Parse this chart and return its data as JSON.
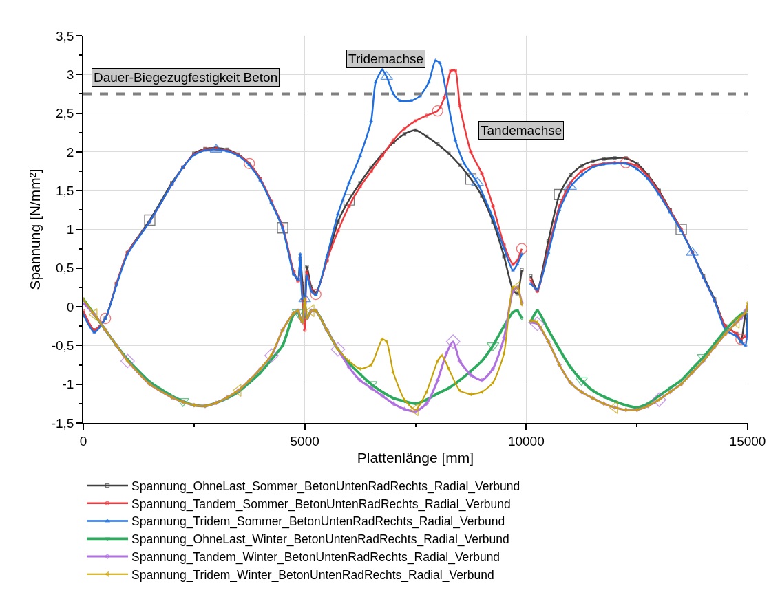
{
  "chart_data": {
    "type": "line",
    "xlabel": "Plattenlänge [mm]",
    "ylabel": "Spannung [N/mm²]",
    "xlim": [
      0,
      15000
    ],
    "xticks": [
      0,
      {
        "value": 2500,
        "label": null
      },
      5000,
      {
        "value": 7500,
        "label": null
      },
      10000,
      {
        "value": 12500,
        "label": null
      },
      15000
    ],
    "ylim": [
      -1.5,
      3.5
    ],
    "yticks": [
      {
        "value": -1.5,
        "label": "-1,5"
      },
      {
        "value": -1.25,
        "label": null
      },
      -1,
      {
        "value": -0.75,
        "label": null
      },
      {
        "value": -0.5,
        "label": "-0,5"
      },
      {
        "value": -0.25,
        "label": null
      },
      0,
      {
        "value": 0.25,
        "label": null
      },
      {
        "value": 0.5,
        "label": "0,5"
      },
      {
        "value": 0.75,
        "label": null
      },
      1,
      {
        "value": 1.25,
        "label": null
      },
      {
        "value": 1.5,
        "label": "1,5"
      },
      {
        "value": 1.75,
        "label": null
      },
      2,
      {
        "value": 2.25,
        "label": null
      },
      {
        "value": 2.5,
        "label": "2,5"
      },
      {
        "value": 2.75,
        "label": null
      },
      3,
      {
        "value": 3.25,
        "label": null
      },
      {
        "value": 3.5,
        "label": "3,5"
      }
    ],
    "grid": true,
    "legend": "bottom",
    "line_style": "solid",
    "ref_lines": [
      {
        "axis": "y",
        "value": 2.75,
        "label": "Dauer-Biegezugfestigkeit Beton",
        "color": "#808080",
        "line_style": "dashed"
      }
    ],
    "annotations": [
      "Tridemachse",
      "Tandemachse"
    ],
    "series": [
      {
        "name": "Spannung_OhneLast_Sommer_BetonUntenRadRechts_Radial_Verbund",
        "color": "#404040",
        "marker": "square",
        "x": [
          0,
          250,
          500,
          750,
          1000,
          1500,
          2000,
          2250,
          2500,
          2750,
          3000,
          3250,
          3500,
          3750,
          4000,
          4250,
          4500,
          4750,
          4850,
          4900,
          4950,
          5000,
          5050,
          5150,
          5250,
          5500,
          5750,
          6000,
          6250,
          6500,
          6750,
          7000,
          7250,
          7500,
          7750,
          8000,
          8250,
          8500,
          8750,
          9000,
          9250,
          9500,
          9700,
          9800,
          9900,
          10000,
          10100,
          10250,
          10500,
          10750,
          11000,
          11250,
          11500,
          11750,
          12000,
          12250,
          12500,
          12750,
          13000,
          13250,
          13500,
          13750,
          14000,
          14250,
          14500,
          14750,
          14850,
          14950,
          15000
        ],
        "values": [
          -0.1,
          -0.3,
          -0.15,
          0.3,
          0.7,
          1.12,
          1.6,
          1.8,
          1.98,
          2.04,
          2.05,
          2.03,
          1.97,
          1.85,
          1.65,
          1.35,
          1.02,
          0.45,
          0.35,
          0.62,
          0.3,
          0.05,
          0.52,
          0.25,
          0.18,
          0.6,
          1.1,
          1.38,
          1.6,
          1.8,
          1.97,
          2.12,
          2.23,
          2.28,
          2.2,
          2.1,
          1.98,
          1.83,
          1.65,
          1.43,
          1.1,
          0.65,
          0.22,
          0.17,
          0.48,
          null,
          0.4,
          0.22,
          0.85,
          1.45,
          1.7,
          1.82,
          1.88,
          1.91,
          1.92,
          1.92,
          1.85,
          1.7,
          1.5,
          1.25,
          1.0,
          0.7,
          0.4,
          0.1,
          -0.25,
          -0.35,
          -0.45,
          -0.1,
          -0.3
        ]
      },
      {
        "name": "Spannung_Tandem_Sommer_BetonUntenRadRechts_Radial_Verbund",
        "color": "#f0383c",
        "marker": "circle",
        "x": [
          0,
          250,
          500,
          750,
          1000,
          1500,
          2000,
          2250,
          2500,
          2750,
          3000,
          3250,
          3500,
          3750,
          4000,
          4250,
          4500,
          4750,
          4850,
          4900,
          4950,
          5000,
          5050,
          5150,
          5250,
          5500,
          5750,
          6000,
          6250,
          6500,
          6750,
          7000,
          7250,
          7500,
          7750,
          8000,
          8150,
          8300,
          8400,
          8500,
          8750,
          9000,
          9250,
          9500,
          9700,
          9800,
          9900,
          10000,
          10100,
          10250,
          10500,
          10750,
          11000,
          11250,
          11500,
          11750,
          12000,
          12250,
          12500,
          12750,
          13000,
          13250,
          13500,
          13750,
          14000,
          14250,
          14500,
          14750,
          14850,
          14950,
          15000
        ],
        "values": [
          -0.05,
          -0.3,
          -0.15,
          0.3,
          0.7,
          1.1,
          1.58,
          1.8,
          1.97,
          2.03,
          2.04,
          2.02,
          1.96,
          1.85,
          1.65,
          1.36,
          1.04,
          0.45,
          0.33,
          0.5,
          0.1,
          -0.3,
          0.45,
          0.22,
          0.16,
          0.6,
          0.98,
          1.3,
          1.55,
          1.75,
          1.95,
          2.15,
          2.3,
          2.4,
          2.47,
          2.53,
          2.7,
          3.05,
          3.05,
          2.6,
          2.0,
          1.72,
          1.3,
          0.8,
          0.55,
          0.6,
          0.75,
          null,
          0.35,
          0.2,
          0.75,
          1.3,
          1.6,
          1.75,
          1.82,
          1.85,
          1.86,
          1.86,
          1.82,
          1.68,
          1.48,
          1.24,
          1.0,
          0.7,
          0.38,
          0.08,
          -0.25,
          -0.35,
          -0.42,
          -0.38,
          -0.4
        ]
      },
      {
        "name": "Spannung_Tridem_Sommer_BetonUntenRadRechts_Radial_Verbund",
        "color": "#1f6fe0",
        "marker": "triangle",
        "x": [
          0,
          250,
          500,
          750,
          1000,
          1500,
          2000,
          2250,
          2500,
          2750,
          3000,
          3250,
          3500,
          3750,
          4000,
          4250,
          4500,
          4750,
          4850,
          4900,
          4950,
          5000,
          5050,
          5150,
          5250,
          5500,
          5750,
          6000,
          6250,
          6500,
          6600,
          6750,
          6850,
          7000,
          7150,
          7400,
          7600,
          7800,
          7950,
          8050,
          8200,
          8400,
          8600,
          8900,
          9250,
          9500,
          9700,
          9800,
          9900,
          10000,
          10100,
          10250,
          10500,
          10750,
          11000,
          11250,
          11500,
          11750,
          12000,
          12250,
          12500,
          12750,
          13000,
          13250,
          13500,
          13750,
          14000,
          14250,
          14500,
          14750,
          14850,
          14950,
          15000
        ],
        "values": [
          -0.1,
          -0.33,
          -0.15,
          0.28,
          0.68,
          1.1,
          1.58,
          1.8,
          1.96,
          2.02,
          2.03,
          2.01,
          1.95,
          1.83,
          1.63,
          1.34,
          1.02,
          0.42,
          0.35,
          0.68,
          0.1,
          0.1,
          0.4,
          0.2,
          0.15,
          0.65,
          1.2,
          1.6,
          1.95,
          2.4,
          2.9,
          3.06,
          2.97,
          2.75,
          2.66,
          2.66,
          2.72,
          2.9,
          3.18,
          3.15,
          2.75,
          2.15,
          1.85,
          1.6,
          1.15,
          0.75,
          0.47,
          0.55,
          0.68,
          null,
          0.3,
          0.22,
          0.7,
          1.25,
          1.55,
          1.7,
          1.8,
          1.84,
          1.85,
          1.85,
          1.78,
          1.65,
          1.45,
          1.22,
          0.98,
          0.7,
          0.38,
          0.08,
          -0.3,
          -0.38,
          -0.45,
          -0.5,
          -0.1
        ]
      },
      {
        "name": "Spannung_OhneLast_Winter_BetonUntenRadRechts_Radial_Verbund",
        "color": "#2eaa5e",
        "marker": "triangle-down",
        "x": [
          0,
          250,
          500,
          750,
          1000,
          1500,
          2000,
          2250,
          2500,
          2750,
          3000,
          3250,
          3500,
          3750,
          4000,
          4250,
          4500,
          4750,
          4850,
          4900,
          4950,
          5000,
          5050,
          5150,
          5250,
          5500,
          5750,
          6000,
          6250,
          6500,
          6750,
          7000,
          7250,
          7500,
          7750,
          8000,
          8250,
          8500,
          8750,
          9000,
          9250,
          9500,
          9700,
          9800,
          9900,
          10000,
          10100,
          10250,
          10500,
          10750,
          11000,
          11250,
          11500,
          11750,
          12000,
          12250,
          12500,
          12750,
          13000,
          13250,
          13500,
          13750,
          14000,
          14250,
          14500,
          14750,
          14850,
          14950,
          15000
        ],
        "values": [
          0.1,
          -0.1,
          -0.3,
          -0.5,
          -0.68,
          -0.97,
          -1.15,
          -1.22,
          -1.27,
          -1.28,
          -1.24,
          -1.18,
          -1.1,
          -0.98,
          -0.85,
          -0.68,
          -0.5,
          -0.1,
          -0.07,
          -0.15,
          -0.2,
          0.05,
          -0.15,
          -0.05,
          -0.05,
          -0.3,
          -0.55,
          -0.73,
          -0.87,
          -1.0,
          -1.1,
          -1.18,
          -1.22,
          -1.25,
          -1.2,
          -1.12,
          -1.05,
          -0.95,
          -0.83,
          -0.7,
          -0.5,
          -0.25,
          -0.07,
          -0.05,
          -0.15,
          null,
          -0.2,
          -0.05,
          -0.3,
          -0.55,
          -0.78,
          -0.95,
          -1.08,
          -1.16,
          -1.22,
          -1.27,
          -1.3,
          -1.25,
          -1.15,
          -1.05,
          -0.95,
          -0.8,
          -0.65,
          -0.48,
          -0.3,
          -0.15,
          -0.1,
          -0.06,
          -0.05
        ]
      },
      {
        "name": "Spannung_Tandem_Winter_BetonUntenRadRechts_Radial_Verbund",
        "color": "#b070e0",
        "marker": "diamond",
        "x": [
          0,
          250,
          500,
          750,
          1000,
          1500,
          2000,
          2250,
          2500,
          2750,
          3000,
          3250,
          3500,
          3750,
          4000,
          4250,
          4500,
          4750,
          4850,
          4900,
          4950,
          5000,
          5050,
          5150,
          5250,
          5500,
          5750,
          6000,
          6250,
          6500,
          6750,
          7000,
          7250,
          7500,
          7750,
          8000,
          8200,
          8350,
          8500,
          8750,
          9000,
          9250,
          9500,
          9700,
          9800,
          9900,
          10000,
          10100,
          10250,
          10500,
          10750,
          11000,
          11250,
          11500,
          11750,
          12000,
          12250,
          12500,
          12750,
          13000,
          13250,
          13500,
          13750,
          14000,
          14250,
          14500,
          14750,
          14850,
          14950,
          15000
        ],
        "values": [
          0.05,
          -0.1,
          -0.3,
          -0.5,
          -0.7,
          -1.0,
          -1.17,
          -1.23,
          -1.27,
          -1.28,
          -1.24,
          -1.17,
          -1.08,
          -0.95,
          -0.8,
          -0.63,
          -0.3,
          -0.08,
          -0.05,
          -0.15,
          -0.2,
          0.05,
          -0.15,
          -0.05,
          -0.05,
          -0.3,
          -0.55,
          -0.78,
          -0.95,
          -1.05,
          -1.15,
          -1.25,
          -1.32,
          -1.35,
          -1.25,
          -0.95,
          -0.6,
          -0.45,
          -0.7,
          -0.88,
          -0.95,
          -0.8,
          -0.4,
          0.2,
          0.25,
          0.05,
          null,
          -0.2,
          -0.22,
          -0.45,
          -0.75,
          -0.98,
          -1.1,
          -1.18,
          -1.25,
          -1.3,
          -1.33,
          -1.33,
          -1.28,
          -1.2,
          -1.1,
          -1.0,
          -0.85,
          -0.7,
          -0.52,
          -0.35,
          -0.2,
          -0.15,
          -0.05,
          0.0
        ]
      },
      {
        "name": "Spannung_Tridem_Winter_BetonUntenRadRechts_Radial_Verbund",
        "color": "#c8a000",
        "marker": "triangle-left",
        "x": [
          0,
          250,
          500,
          750,
          1000,
          1500,
          2000,
          2250,
          2500,
          2750,
          3000,
          3250,
          3500,
          3750,
          4000,
          4250,
          4500,
          4750,
          4850,
          4900,
          4950,
          5000,
          5050,
          5150,
          5250,
          5500,
          5750,
          6000,
          6250,
          6500,
          6750,
          6850,
          7000,
          7250,
          7500,
          7750,
          8000,
          8100,
          8250,
          8500,
          8750,
          9000,
          9250,
          9500,
          9700,
          9800,
          9900,
          10000,
          10100,
          10250,
          10500,
          10750,
          11000,
          11250,
          11500,
          11750,
          12000,
          12250,
          12500,
          12750,
          13000,
          13250,
          13500,
          13750,
          14000,
          14250,
          14500,
          14750,
          14850,
          14950,
          15000
        ],
        "values": [
          0.1,
          -0.1,
          -0.3,
          -0.5,
          -0.7,
          -1.0,
          -1.17,
          -1.23,
          -1.27,
          -1.28,
          -1.24,
          -1.17,
          -1.08,
          -0.95,
          -0.8,
          -0.62,
          -0.3,
          -0.08,
          -0.05,
          -0.15,
          -0.2,
          0.1,
          -0.15,
          -0.05,
          -0.05,
          -0.3,
          -0.55,
          -0.7,
          -0.8,
          -0.75,
          -0.42,
          -0.45,
          -0.85,
          -1.2,
          -1.33,
          -1.1,
          -0.7,
          -0.63,
          -0.8,
          -1.08,
          -1.13,
          -1.1,
          -0.98,
          -0.6,
          0.25,
          0.25,
          0.03,
          null,
          -0.18,
          -0.2,
          -0.45,
          -0.75,
          -0.98,
          -1.1,
          -1.18,
          -1.25,
          -1.3,
          -1.33,
          -1.33,
          -1.28,
          -1.2,
          -1.1,
          -1.0,
          -0.85,
          -0.7,
          -0.52,
          -0.35,
          -0.2,
          -0.12,
          -0.08,
          0.05
        ]
      }
    ]
  }
}
